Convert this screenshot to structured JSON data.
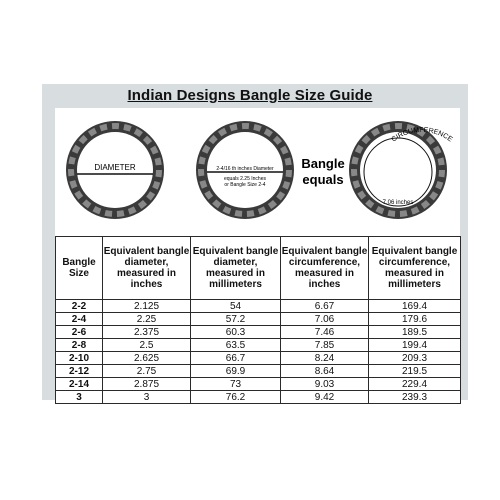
{
  "title": "Indian Designs Bangle Size Guide",
  "diagrams": {
    "diameter_label": "DIAMETER",
    "center_note_line1": "2-4/16 th inches Diameter",
    "center_note_line2": "equals 2.25 Inches",
    "center_note_line3": "or Bangle Size 2-4",
    "equals_line1": "Bangle",
    "equals_line2": "equals",
    "circumference_label": "CIRCUMFERENCE",
    "circumference_value": "7.06 inches"
  },
  "table": {
    "headers": [
      [
        "Bangle",
        "Size"
      ],
      [
        "Equivalent bangle",
        "diameter,",
        "measured in",
        "inches"
      ],
      [
        "Equivalent bangle",
        "diameter,",
        "measured in",
        "millimeters"
      ],
      [
        "Equivalent bangle",
        "circumference,",
        "measured in",
        "inches"
      ],
      [
        "Equivalent bangle",
        "circumference,",
        "measured in",
        "millimeters"
      ]
    ],
    "rows": [
      [
        "2-2",
        "2.125",
        "54",
        "6.67",
        "169.4"
      ],
      [
        "2-4",
        "2.25",
        "57.2",
        "7.06",
        "179.6"
      ],
      [
        "2-6",
        "2.375",
        "60.3",
        "7.46",
        "189.5"
      ],
      [
        "2-8",
        "2.5",
        "63.5",
        "7.85",
        "199.4"
      ],
      [
        "2-10",
        "2.625",
        "66.7",
        "8.24",
        "209.3"
      ],
      [
        "2-12",
        "2.75",
        "69.9",
        "8.64",
        "219.5"
      ],
      [
        "2-14",
        "2.875",
        "73",
        "9.03",
        "229.4"
      ],
      [
        "3",
        "3",
        "76.2",
        "9.42",
        "239.3"
      ]
    ]
  }
}
